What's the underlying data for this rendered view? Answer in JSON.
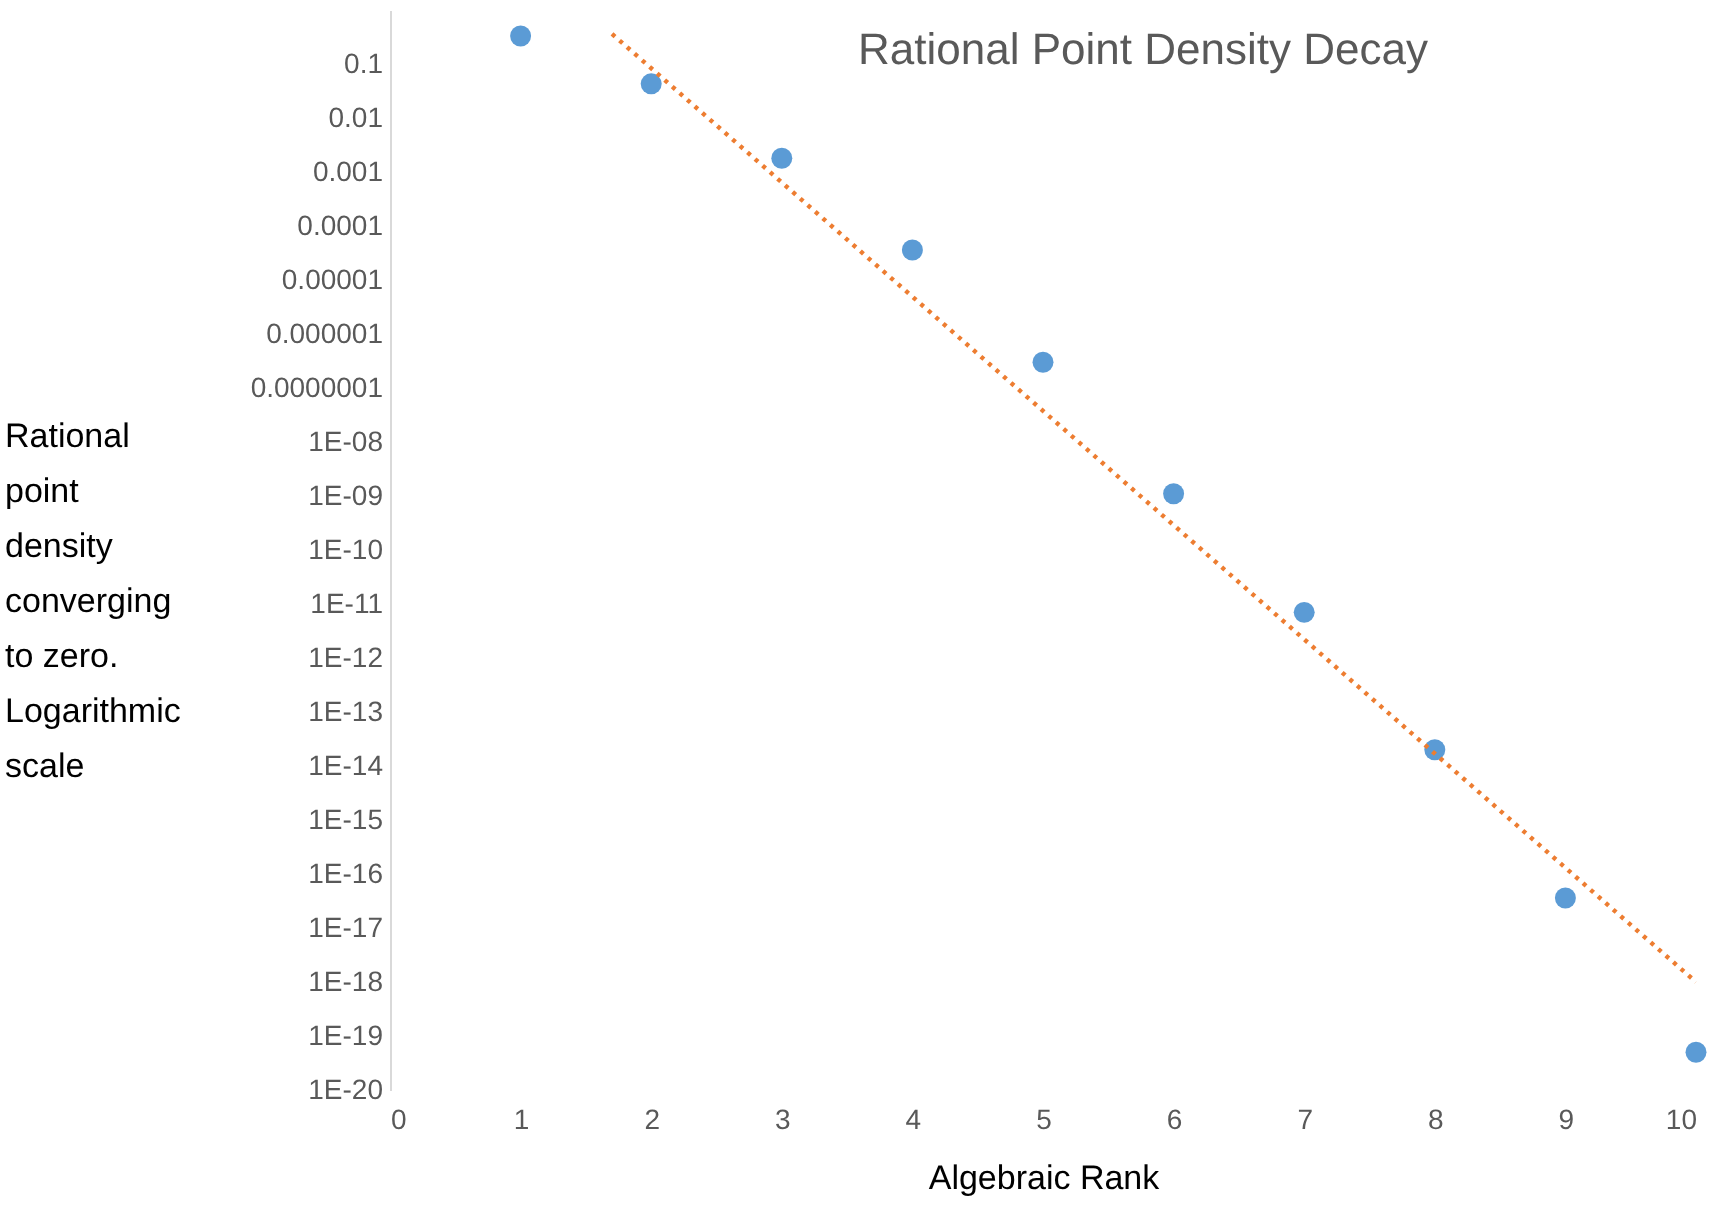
{
  "chart_data": {
    "type": "scatter",
    "title": "Rational Point Density Decay",
    "xlabel": "Algebraic Rank",
    "ylabel": "Rational point density converging to zero. Logarithmic scale",
    "x": [
      1,
      2,
      3,
      4,
      5,
      6,
      7,
      8,
      9,
      10
    ],
    "series": [
      {
        "color": "#5b9bd5",
        "marker": "circle",
        "values": [
          0.33,
          0.043,
          0.0018,
          3.6e-05,
          3e-07,
          1.1e-09,
          7e-12,
          2e-14,
          3.6e-17,
          5e-20
        ]
      },
      {
        "type": "line",
        "color": "#ed7d31",
        "line_style": "dotted",
        "x": [
          1.7,
          10
        ],
        "values": [
          0.36,
          1e-18
        ]
      }
    ],
    "log": "y",
    "xlim": [
      0,
      10
    ],
    "xticks": [
      0,
      1,
      2,
      3,
      4,
      5,
      6,
      7,
      8,
      9,
      10
    ],
    "ylim": [
      1e-20,
      1
    ],
    "yticks": [
      0.1,
      0.01,
      0.001,
      0.0001,
      {
        "value": 1e-05,
        "label": "0.00001"
      },
      {
        "value": 1e-06,
        "label": "0.000001"
      },
      {
        "value": 1e-07,
        "label": "0.0000001"
      },
      {
        "value": 1e-08,
        "label": "1E-08"
      },
      {
        "value": 1e-09,
        "label": "1E-09"
      },
      {
        "value": 1e-10,
        "label": "1E-10"
      },
      {
        "value": 1e-11,
        "label": "1E-11"
      },
      {
        "value": 1e-12,
        "label": "1E-12"
      },
      {
        "value": 1e-13,
        "label": "1E-13"
      },
      {
        "value": 1e-14,
        "label": "1E-14"
      },
      {
        "value": 1e-15,
        "label": "1E-15"
      },
      {
        "value": 1e-16,
        "label": "1E-16"
      },
      {
        "value": 1e-17,
        "label": "1E-17"
      },
      {
        "value": 1e-18,
        "label": "1E-18"
      },
      {
        "value": 1e-19,
        "label": "1E-19"
      },
      {
        "value": 1e-20,
        "label": "1E-20"
      }
    ],
    "grid": false
  }
}
